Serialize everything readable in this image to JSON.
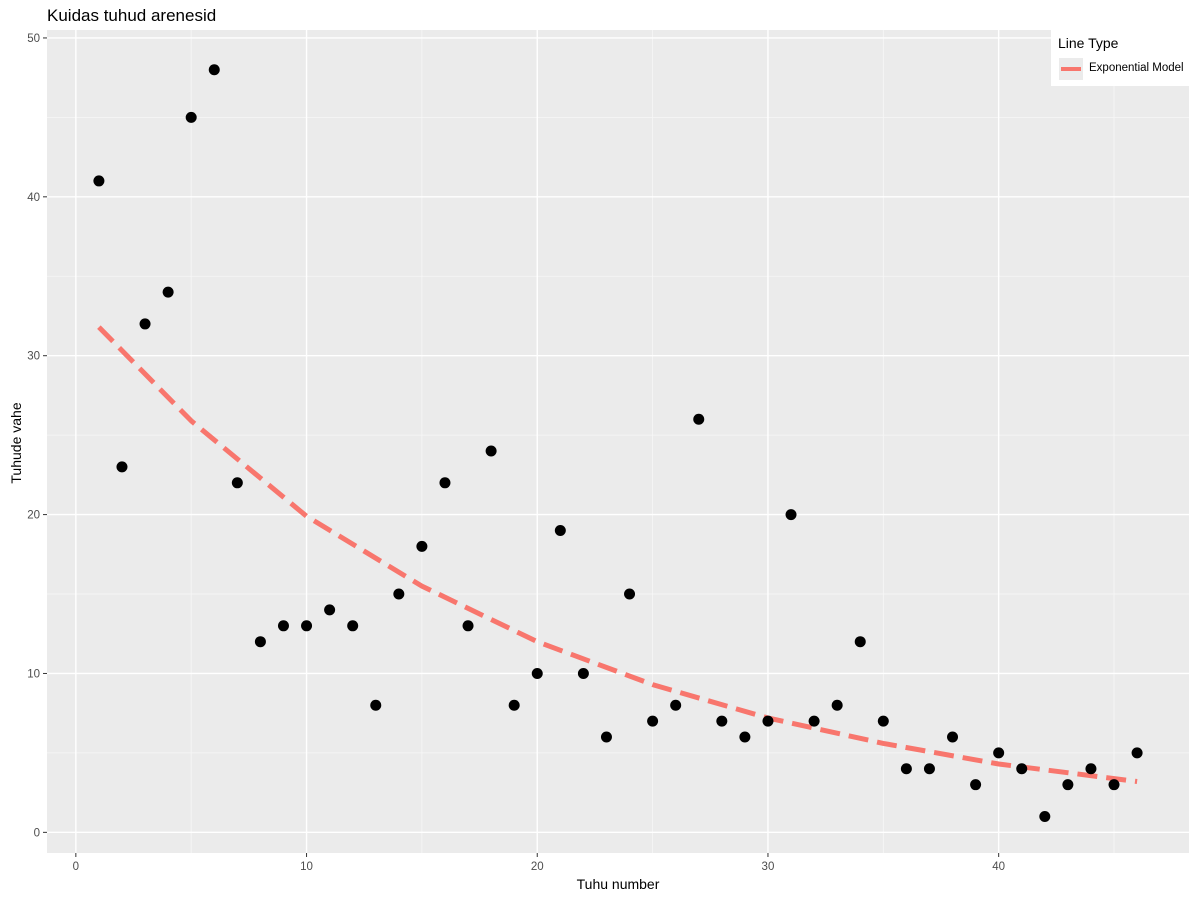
{
  "chart_data": {
    "type": "scatter",
    "title": "Kuidas tuhud arenesid",
    "xlabel": "Tuhu number",
    "ylabel": "Tuhude vahe",
    "xlim": [
      -1.25,
      48.25
    ],
    "ylim": [
      -1.3,
      50.5
    ],
    "xticks": [
      0,
      10,
      20,
      30,
      40
    ],
    "yticks": [
      0,
      10,
      20,
      30,
      40,
      50
    ],
    "grid": true,
    "legend_position": "top-right",
    "series": [
      {
        "kind": "points",
        "x": [
          1,
          2,
          3,
          4,
          5,
          6,
          7,
          8,
          9,
          10,
          11,
          12,
          13,
          14,
          15,
          16,
          17,
          18,
          19,
          20,
          21,
          22,
          23,
          24,
          25,
          26,
          27,
          28,
          29,
          30,
          31,
          32,
          33,
          34,
          35,
          36,
          37,
          38,
          39,
          40,
          41,
          42,
          43,
          44,
          45,
          46
        ],
        "y": [
          41,
          23,
          32,
          34,
          45,
          48,
          22,
          12,
          13,
          13,
          14,
          13,
          8,
          15,
          18,
          22,
          13,
          24,
          8,
          10,
          19,
          10,
          6,
          15,
          7,
          8,
          26,
          7,
          6,
          7,
          20,
          7,
          8,
          12,
          7,
          4,
          4,
          6,
          3,
          5,
          4,
          1,
          3,
          4,
          3,
          5
        ],
        "color": "#000000"
      },
      {
        "kind": "line",
        "name": "Exponential Model",
        "style": "dashed",
        "color": "#f8766d",
        "x": [
          1,
          5,
          10,
          15,
          20,
          25,
          30,
          35,
          40,
          46
        ],
        "y": [
          31.8,
          25.9,
          19.9,
          15.5,
          12.0,
          9.3,
          7.2,
          5.6,
          4.3,
          3.2
        ]
      }
    ]
  },
  "legend": {
    "title": "Line Type",
    "entries": [
      "Exponential Model"
    ]
  }
}
